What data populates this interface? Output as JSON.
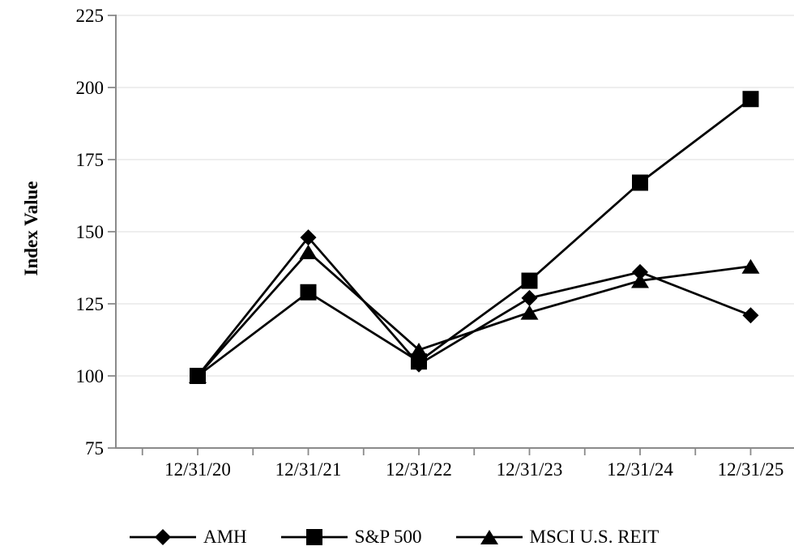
{
  "chart_data": {
    "type": "line",
    "title": "",
    "xlabel": "",
    "ylabel": "Index Value",
    "categories": [
      "12/31/20",
      "12/31/21",
      "12/31/22",
      "12/31/23",
      "12/31/24",
      "12/31/25"
    ],
    "series": [
      {
        "name": "AMH",
        "marker": "diamond",
        "values": [
          100,
          148,
          104,
          127,
          136,
          121
        ]
      },
      {
        "name": "S&P 500",
        "marker": "square",
        "values": [
          100,
          129,
          105,
          133,
          167,
          196
        ]
      },
      {
        "name": "MSCI U.S. REIT",
        "marker": "triangle",
        "values": [
          100,
          143,
          109,
          122,
          133,
          138
        ]
      }
    ],
    "ylim": [
      75,
      225
    ],
    "yticks": [
      75,
      100,
      125,
      150,
      175,
      200,
      225
    ],
    "grid": true,
    "legend_position": "bottom",
    "colors": {
      "series": "#000000",
      "grid": "#e3e3e3",
      "axis": "#8a8a8a",
      "text": "#000000",
      "background": "#ffffff"
    }
  }
}
